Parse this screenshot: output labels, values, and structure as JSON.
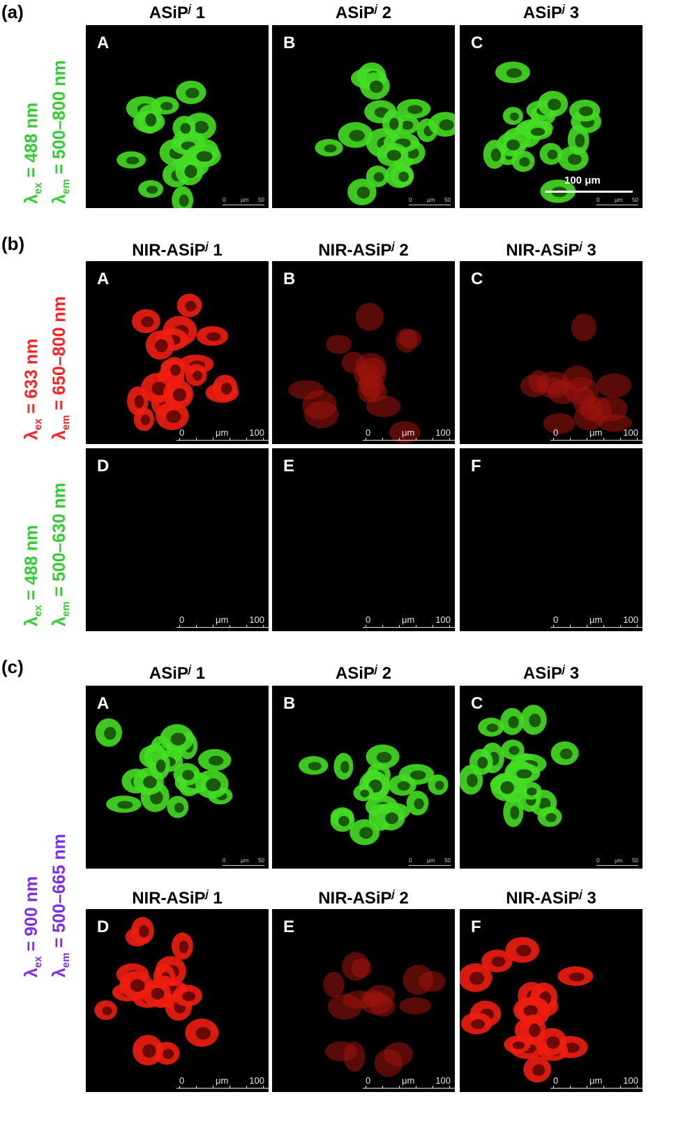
{
  "sections": {
    "a": {
      "label": "(a)",
      "titles": [
        "ASiP",
        "ASiP",
        "ASiP"
      ],
      "title_sup": "j",
      "title_nums": [
        "1",
        "2",
        "3"
      ],
      "letters": [
        "A",
        "B",
        "C"
      ],
      "lambda_ex": "= 488 nm",
      "lambda_em": "= 500–800 nm",
      "color": "#33cc33"
    },
    "b": {
      "label": "(b)",
      "titles": [
        "NIR-ASiP",
        "NIR-ASiP",
        "NIR-ASiP"
      ],
      "title_sup": "j",
      "title_nums": [
        "1",
        "2",
        "3"
      ],
      "letters_top": [
        "A",
        "B",
        "C"
      ],
      "letters_bottom": [
        "D",
        "E",
        "F"
      ],
      "lambda_ex_top": "= 633 nm",
      "lambda_em_top": "= 650–800 nm",
      "color_top": "#ff2222",
      "lambda_ex_bottom": "= 488 nm",
      "lambda_em_bottom": "= 500–630 nm",
      "color_bottom": "#33cc33"
    },
    "c": {
      "label": "(c)",
      "titles_top": [
        "ASiP",
        "ASiP",
        "ASiP"
      ],
      "titles_bottom": [
        "NIR-ASiP",
        "NIR-ASiP",
        "NIR-ASiP"
      ],
      "title_sup": "j",
      "title_nums": [
        "1",
        "2",
        "3"
      ],
      "letters_top": [
        "A",
        "B",
        "C"
      ],
      "letters_bottom": [
        "D",
        "E",
        "F"
      ],
      "lambda_ex": "= 900 nm",
      "lambda_em": "= 500–665 nm",
      "color": "#7b2ff0"
    }
  },
  "lambda_symbol": "λ",
  "sub_ex": "ex",
  "sub_em": "em",
  "scale_small": {
    "start": "0",
    "unit": "μm",
    "end": "50"
  },
  "scale_big": {
    "start": "0",
    "unit": "μm",
    "end": "100"
  },
  "scale_bar_label": "100 μm"
}
